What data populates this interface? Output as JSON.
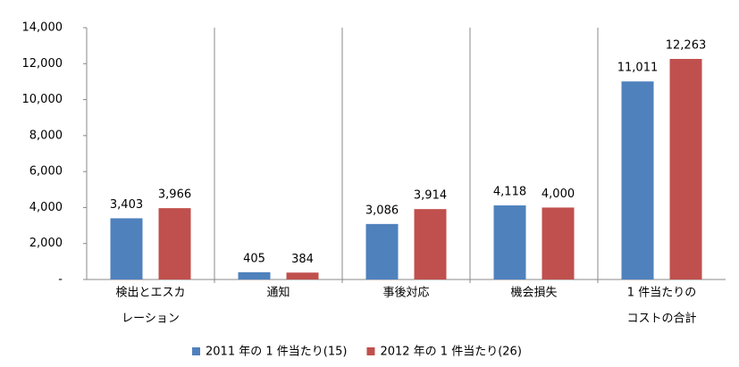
{
  "chart_data": {
    "type": "bar",
    "categories": [
      [
        "検出とエスカ",
        "レーション"
      ],
      [
        "通知"
      ],
      [
        "事後対応"
      ],
      [
        "機会損失"
      ],
      [
        "1 件当たりの",
        "コストの合計"
      ]
    ],
    "series": [
      {
        "name": "2011 年の 1 件当たり(15)",
        "color": "#4f81bd",
        "values": [
          3403,
          405,
          3086,
          4118,
          11011
        ],
        "value_labels": [
          "3,403",
          "405",
          "3,086",
          "4,118",
          "11,011"
        ]
      },
      {
        "name": "2012 年の 1 件当たり(26)",
        "color": "#c0504d",
        "values": [
          3966,
          384,
          3914,
          4000,
          12263
        ],
        "value_labels": [
          "3,966",
          "384",
          "3,914",
          "4,000",
          "12,263"
        ]
      }
    ],
    "ylim": [
      0,
      14000
    ],
    "yticks": [
      {
        "value": 0,
        "label": "-"
      },
      {
        "value": 2000,
        "label": "2,000"
      },
      {
        "value": 4000,
        "label": "4,000"
      },
      {
        "value": 6000,
        "label": "6,000"
      },
      {
        "value": 8000,
        "label": "8,000"
      },
      {
        "value": 10000,
        "label": "10,000"
      },
      {
        "value": 12000,
        "label": "12,000"
      },
      {
        "value": 14000,
        "label": "14,000"
      }
    ],
    "legend": "bottom"
  }
}
